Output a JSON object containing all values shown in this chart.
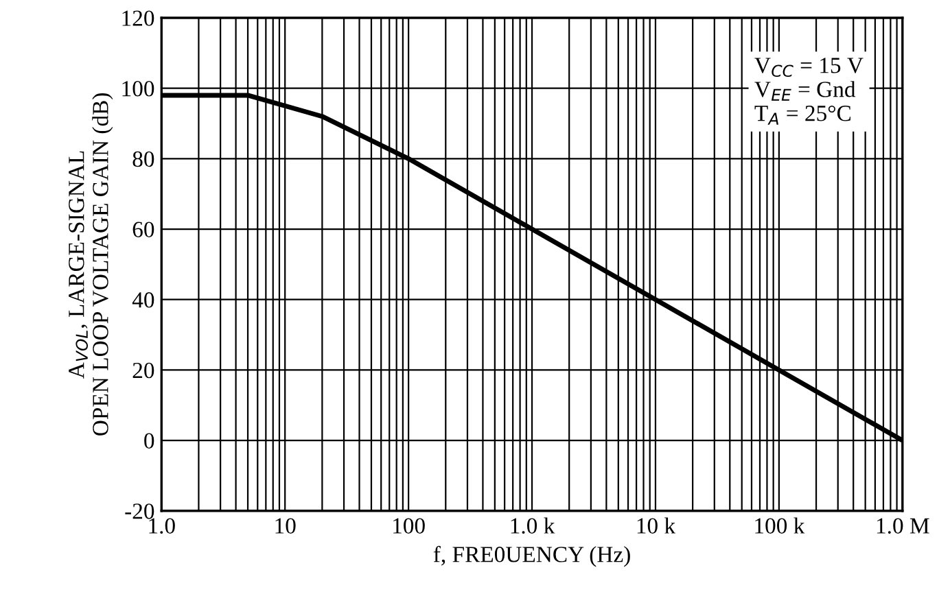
{
  "chart_data": {
    "type": "line",
    "xlabel": "f, FRE0UENCY (Hz)",
    "ylabel": "A$_{VOL}$, LARGE-SIGNAL\nOPEN LOOP VOLTAGE GAIN (dB)",
    "x": [
      1,
      5,
      20,
      100,
      1000,
      10000,
      100000,
      1000000
    ],
    "series": [
      {
        "color": "#000000",
        "values": [
          98,
          98,
          92,
          80,
          60,
          40,
          20,
          0
        ]
      }
    ],
    "log": "x",
    "xlim": [
      1,
      1000000
    ],
    "ylim": [
      -20,
      120
    ],
    "xticks": [
      {
        "value": 1,
        "label": "1.0"
      },
      10,
      100,
      {
        "value": 1000,
        "label": "1.0 k"
      },
      {
        "value": 10000,
        "label": "10 k"
      },
      {
        "value": 100000,
        "label": "100 k"
      },
      {
        "value": 1000000,
        "label": "1.0 M"
      }
    ],
    "yticks": [
      -20,
      0,
      20,
      40,
      60,
      80,
      100,
      120
    ],
    "grid": true,
    "marker": "none",
    "line_style": "solid",
    "annotations": [
      "V$_{CC}$ = 15 V\nV$_{EE}$ = Gnd\nT$_{A}$ = 25°C"
    ]
  }
}
